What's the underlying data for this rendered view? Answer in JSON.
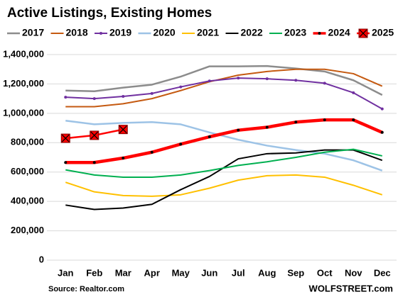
{
  "chart_data": {
    "type": "line",
    "title": "Active Listings, Existing Homes",
    "source": "Source: Realtor.com",
    "credit": "WOLFSTREET.com",
    "categories": [
      "Jan",
      "Feb",
      "Mar",
      "Apr",
      "May",
      "Jun",
      "Jul",
      "Aug",
      "Sep",
      "Oct",
      "Nov",
      "Dec"
    ],
    "ylim": [
      0,
      1400000
    ],
    "yticks": [
      0,
      {
        "value": 200000,
        "label": "200,000"
      },
      {
        "value": 400000,
        "label": "400,000"
      },
      {
        "value": 600000,
        "label": "600,000"
      },
      {
        "value": 800000,
        "label": "800,000"
      },
      {
        "value": 1000000,
        "label": "1,000,000"
      },
      {
        "value": 1200000,
        "label": "1,200,000"
      },
      {
        "value": 1400000,
        "label": "1,400,000"
      }
    ],
    "grid": true,
    "series": [
      {
        "name": "2017",
        "color": "#8c8c8c",
        "width": 2.5,
        "values": [
          1155000,
          1150000,
          1175000,
          1195000,
          1250000,
          1320000,
          1320000,
          1322000,
          1305000,
          1285000,
          1225000,
          1125000
        ]
      },
      {
        "name": "2018",
        "color": "#c55a11",
        "width": 2,
        "values": [
          1045000,
          1045000,
          1065000,
          1100000,
          1155000,
          1215000,
          1260000,
          1285000,
          1300000,
          1300000,
          1270000,
          1185000
        ]
      },
      {
        "name": "2019",
        "color": "#7030a0",
        "width": 2,
        "marker": "dot",
        "values": [
          1110000,
          1100000,
          1115000,
          1135000,
          1180000,
          1220000,
          1240000,
          1235000,
          1225000,
          1205000,
          1140000,
          1030000
        ]
      },
      {
        "name": "2020",
        "color": "#9dc3e6",
        "width": 2.5,
        "values": [
          950000,
          925000,
          935000,
          940000,
          925000,
          870000,
          820000,
          780000,
          750000,
          725000,
          680000,
          610000
        ]
      },
      {
        "name": "2021",
        "color": "#ffc000",
        "width": 2,
        "values": [
          530000,
          465000,
          440000,
          435000,
          445000,
          490000,
          545000,
          575000,
          580000,
          565000,
          510000,
          445000
        ]
      },
      {
        "name": "2022",
        "color": "#000000",
        "width": 2,
        "values": [
          375000,
          345000,
          355000,
          380000,
          480000,
          570000,
          690000,
          725000,
          730000,
          750000,
          750000,
          680000
        ]
      },
      {
        "name": "2023",
        "color": "#00b050",
        "width": 2,
        "values": [
          615000,
          580000,
          565000,
          565000,
          580000,
          610000,
          645000,
          670000,
          700000,
          735000,
          755000,
          710000
        ]
      },
      {
        "name": "2024",
        "color": "#ff0000",
        "width": 4.5,
        "marker": "dot",
        "values": [
          665000,
          665000,
          695000,
          735000,
          790000,
          840000,
          885000,
          905000,
          940000,
          955000,
          955000,
          870000
        ]
      },
      {
        "name": "2025",
        "color": "#ff0000",
        "width": 2.5,
        "marker": "box-x",
        "values": [
          830000,
          850000,
          890000,
          null,
          null,
          null,
          null,
          null,
          null,
          null,
          null,
          null
        ]
      }
    ]
  }
}
